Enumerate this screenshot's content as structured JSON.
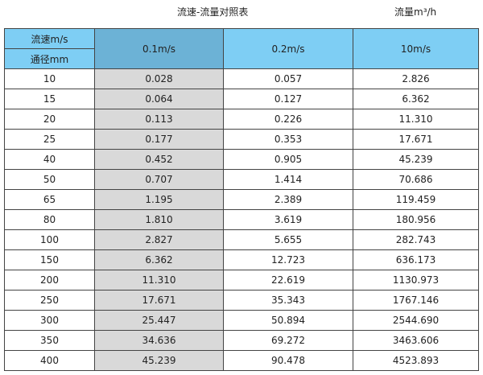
{
  "title": "流速-流量对照表",
  "unit": "流量m³/h",
  "header": {
    "velocity_label": "流速m/s",
    "diameter_label": "通径mm",
    "columns": [
      "0.1m/s",
      "0.2m/s",
      "10m/s"
    ]
  },
  "colors": {
    "header": "#7ecef4",
    "selected_header": "#6cb2d6",
    "highlight_column": "#d9d9d9"
  },
  "rows": [
    [
      "10",
      "0.028",
      "0.057",
      "2.826"
    ],
    [
      "15",
      "0.064",
      "0.127",
      "6.362"
    ],
    [
      "20",
      "0.113",
      "0.226",
      "11.310"
    ],
    [
      "25",
      "0.177",
      "0.353",
      "17.671"
    ],
    [
      "40",
      "0.452",
      "0.905",
      "45.239"
    ],
    [
      "50",
      "0.707",
      "1.414",
      "70.686"
    ],
    [
      "65",
      "1.195",
      "2.389",
      "119.459"
    ],
    [
      "80",
      "1.810",
      "3.619",
      "180.956"
    ],
    [
      "100",
      "2.827",
      "5.655",
      "282.743"
    ],
    [
      "150",
      "6.362",
      "12.723",
      "636.173"
    ],
    [
      "200",
      "11.310",
      "22.619",
      "1130.973"
    ],
    [
      "250",
      "17.671",
      "35.343",
      "1767.146"
    ],
    [
      "300",
      "25.447",
      "50.894",
      "2544.690"
    ],
    [
      "350",
      "34.636",
      "69.272",
      "3463.606"
    ],
    [
      "400",
      "45.239",
      "90.478",
      "4523.893"
    ]
  ]
}
